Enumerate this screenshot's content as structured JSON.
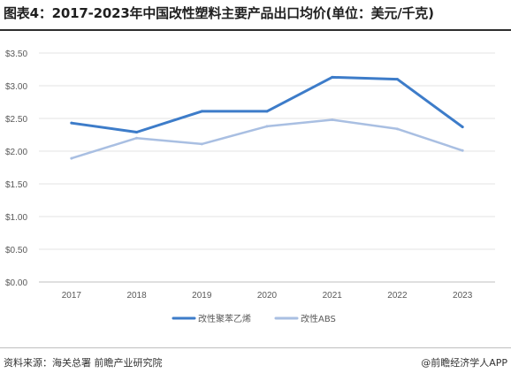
{
  "header": {
    "title": "图表4：2017-2023年中国改性塑料主要产品出口均价(单位：美元/千克)"
  },
  "chart_data": {
    "type": "line",
    "x": [
      "2017",
      "2018",
      "2019",
      "2020",
      "2021",
      "2022",
      "2023"
    ],
    "y_ticks": [
      "$0.00",
      "$0.50",
      "$1.00",
      "$1.50",
      "$2.00",
      "$2.50",
      "$3.00",
      "$3.50"
    ],
    "ylim": [
      0,
      3.5
    ],
    "grid": true,
    "legend_position": "bottom",
    "series": [
      {
        "name": "改性聚苯乙烯",
        "values": [
          2.43,
          2.29,
          2.61,
          2.61,
          3.13,
          3.1,
          2.37
        ],
        "color": "#3d7cc9"
      },
      {
        "name": "改性ABS",
        "values": [
          1.89,
          2.2,
          2.11,
          2.38,
          2.48,
          2.34,
          2.01
        ],
        "color": "#a9bfe2"
      }
    ]
  },
  "footer": {
    "source": "资料来源：海关总署 前瞻产业研究院",
    "credit": "@前瞻经济学人APP"
  }
}
